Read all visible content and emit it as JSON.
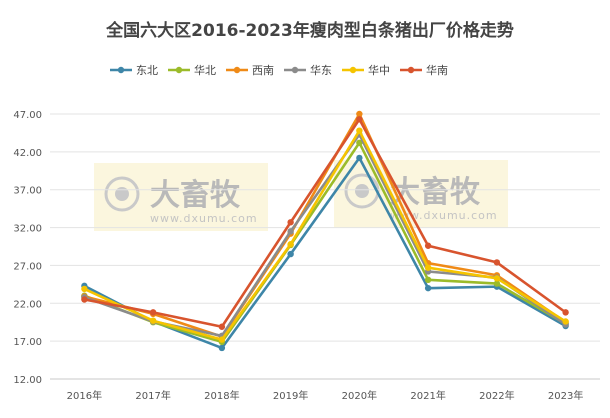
{
  "chart_data": {
    "type": "line",
    "title": "全国六大区2016-2023年瘦肉型白条猪出厂价格走势",
    "categories": [
      "2016年",
      "2017年",
      "2018年",
      "2019年",
      "2020年",
      "2021年",
      "2022年",
      "2023年"
    ],
    "series": [
      {
        "name": "东北",
        "color": "#3e86a8",
        "values": [
          24.3,
          19.6,
          16.1,
          28.5,
          41.2,
          24.0,
          24.2,
          19.0
        ]
      },
      {
        "name": "华北",
        "color": "#9bbb2a",
        "values": [
          23.0,
          19.5,
          16.9,
          29.7,
          43.2,
          25.1,
          24.6,
          19.3
        ]
      },
      {
        "name": "西南",
        "color": "#ef8a17",
        "values": [
          22.9,
          20.6,
          17.6,
          31.2,
          47.0,
          27.3,
          25.7,
          19.5
        ]
      },
      {
        "name": "华东",
        "color": "#8b8b8b",
        "values": [
          22.8,
          19.6,
          17.7,
          31.5,
          44.3,
          26.2,
          25.4,
          19.2
        ]
      },
      {
        "name": "华中",
        "color": "#f5c400",
        "values": [
          23.9,
          19.7,
          17.2,
          29.8,
          44.8,
          26.7,
          25.3,
          19.6
        ]
      },
      {
        "name": "华南",
        "color": "#d8542e",
        "values": [
          22.5,
          20.8,
          18.9,
          32.7,
          46.3,
          29.6,
          27.4,
          20.8
        ]
      }
    ],
    "yticks": [
      "12.00",
      "17.00",
      "22.00",
      "27.00",
      "32.00",
      "37.00",
      "42.00",
      "47.00"
    ],
    "ylim": [
      12,
      47
    ],
    "grid": true,
    "legend": "top"
  },
  "watermark": {
    "brand": "大畜牧",
    "domain": "www.dxumu.com"
  }
}
